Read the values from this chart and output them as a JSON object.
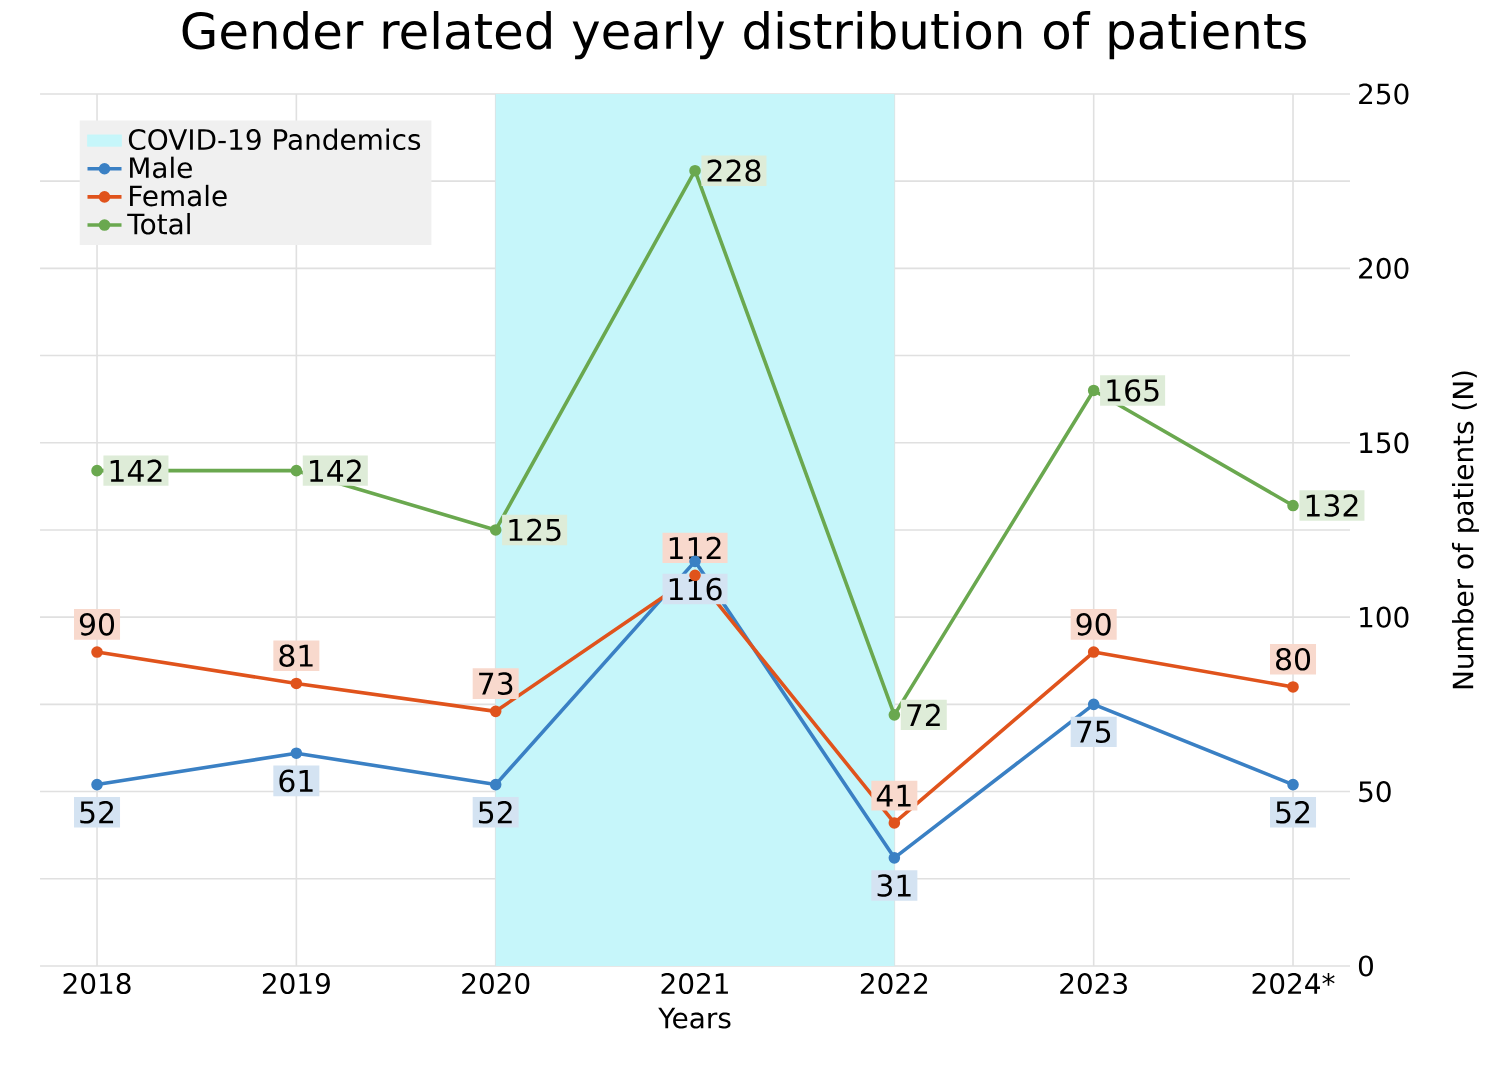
{
  "chart_data": {
    "type": "line",
    "title": "Gender related yearly distribution of patients",
    "xlabel": "Years",
    "ylabel": "Number of patients (N)",
    "categories": [
      "2018",
      "2019",
      "2020",
      "2021",
      "2022",
      "2023",
      "2024*"
    ],
    "series": [
      {
        "name": "Male",
        "color": "#3a80c4",
        "values": [
          52,
          61,
          52,
          116,
          31,
          75,
          52
        ]
      },
      {
        "name": "Female",
        "color": "#e0531c",
        "values": [
          90,
          81,
          73,
          112,
          41,
          90,
          80
        ]
      },
      {
        "name": "Total",
        "color": "#6aa84f",
        "values": [
          142,
          142,
          125,
          228,
          72,
          165,
          132
        ]
      }
    ],
    "bands": [
      {
        "axis": "x",
        "from": "2020",
        "to": "2022",
        "label": "COVID-19 Pandemics",
        "color": "#c6f6fa"
      }
    ],
    "ylim": [
      0,
      250
    ],
    "yticks": [
      0,
      {
        "value": 25,
        "label": null
      },
      50,
      {
        "value": 75,
        "label": null
      },
      100,
      {
        "value": 125,
        "label": null
      },
      150,
      {
        "value": 175,
        "label": null
      },
      200,
      {
        "value": 225,
        "label": null
      },
      250
    ],
    "grid": true,
    "legend": "top left",
    "marker": "circle",
    "line_style": "solid",
    "data_labels": true
  }
}
